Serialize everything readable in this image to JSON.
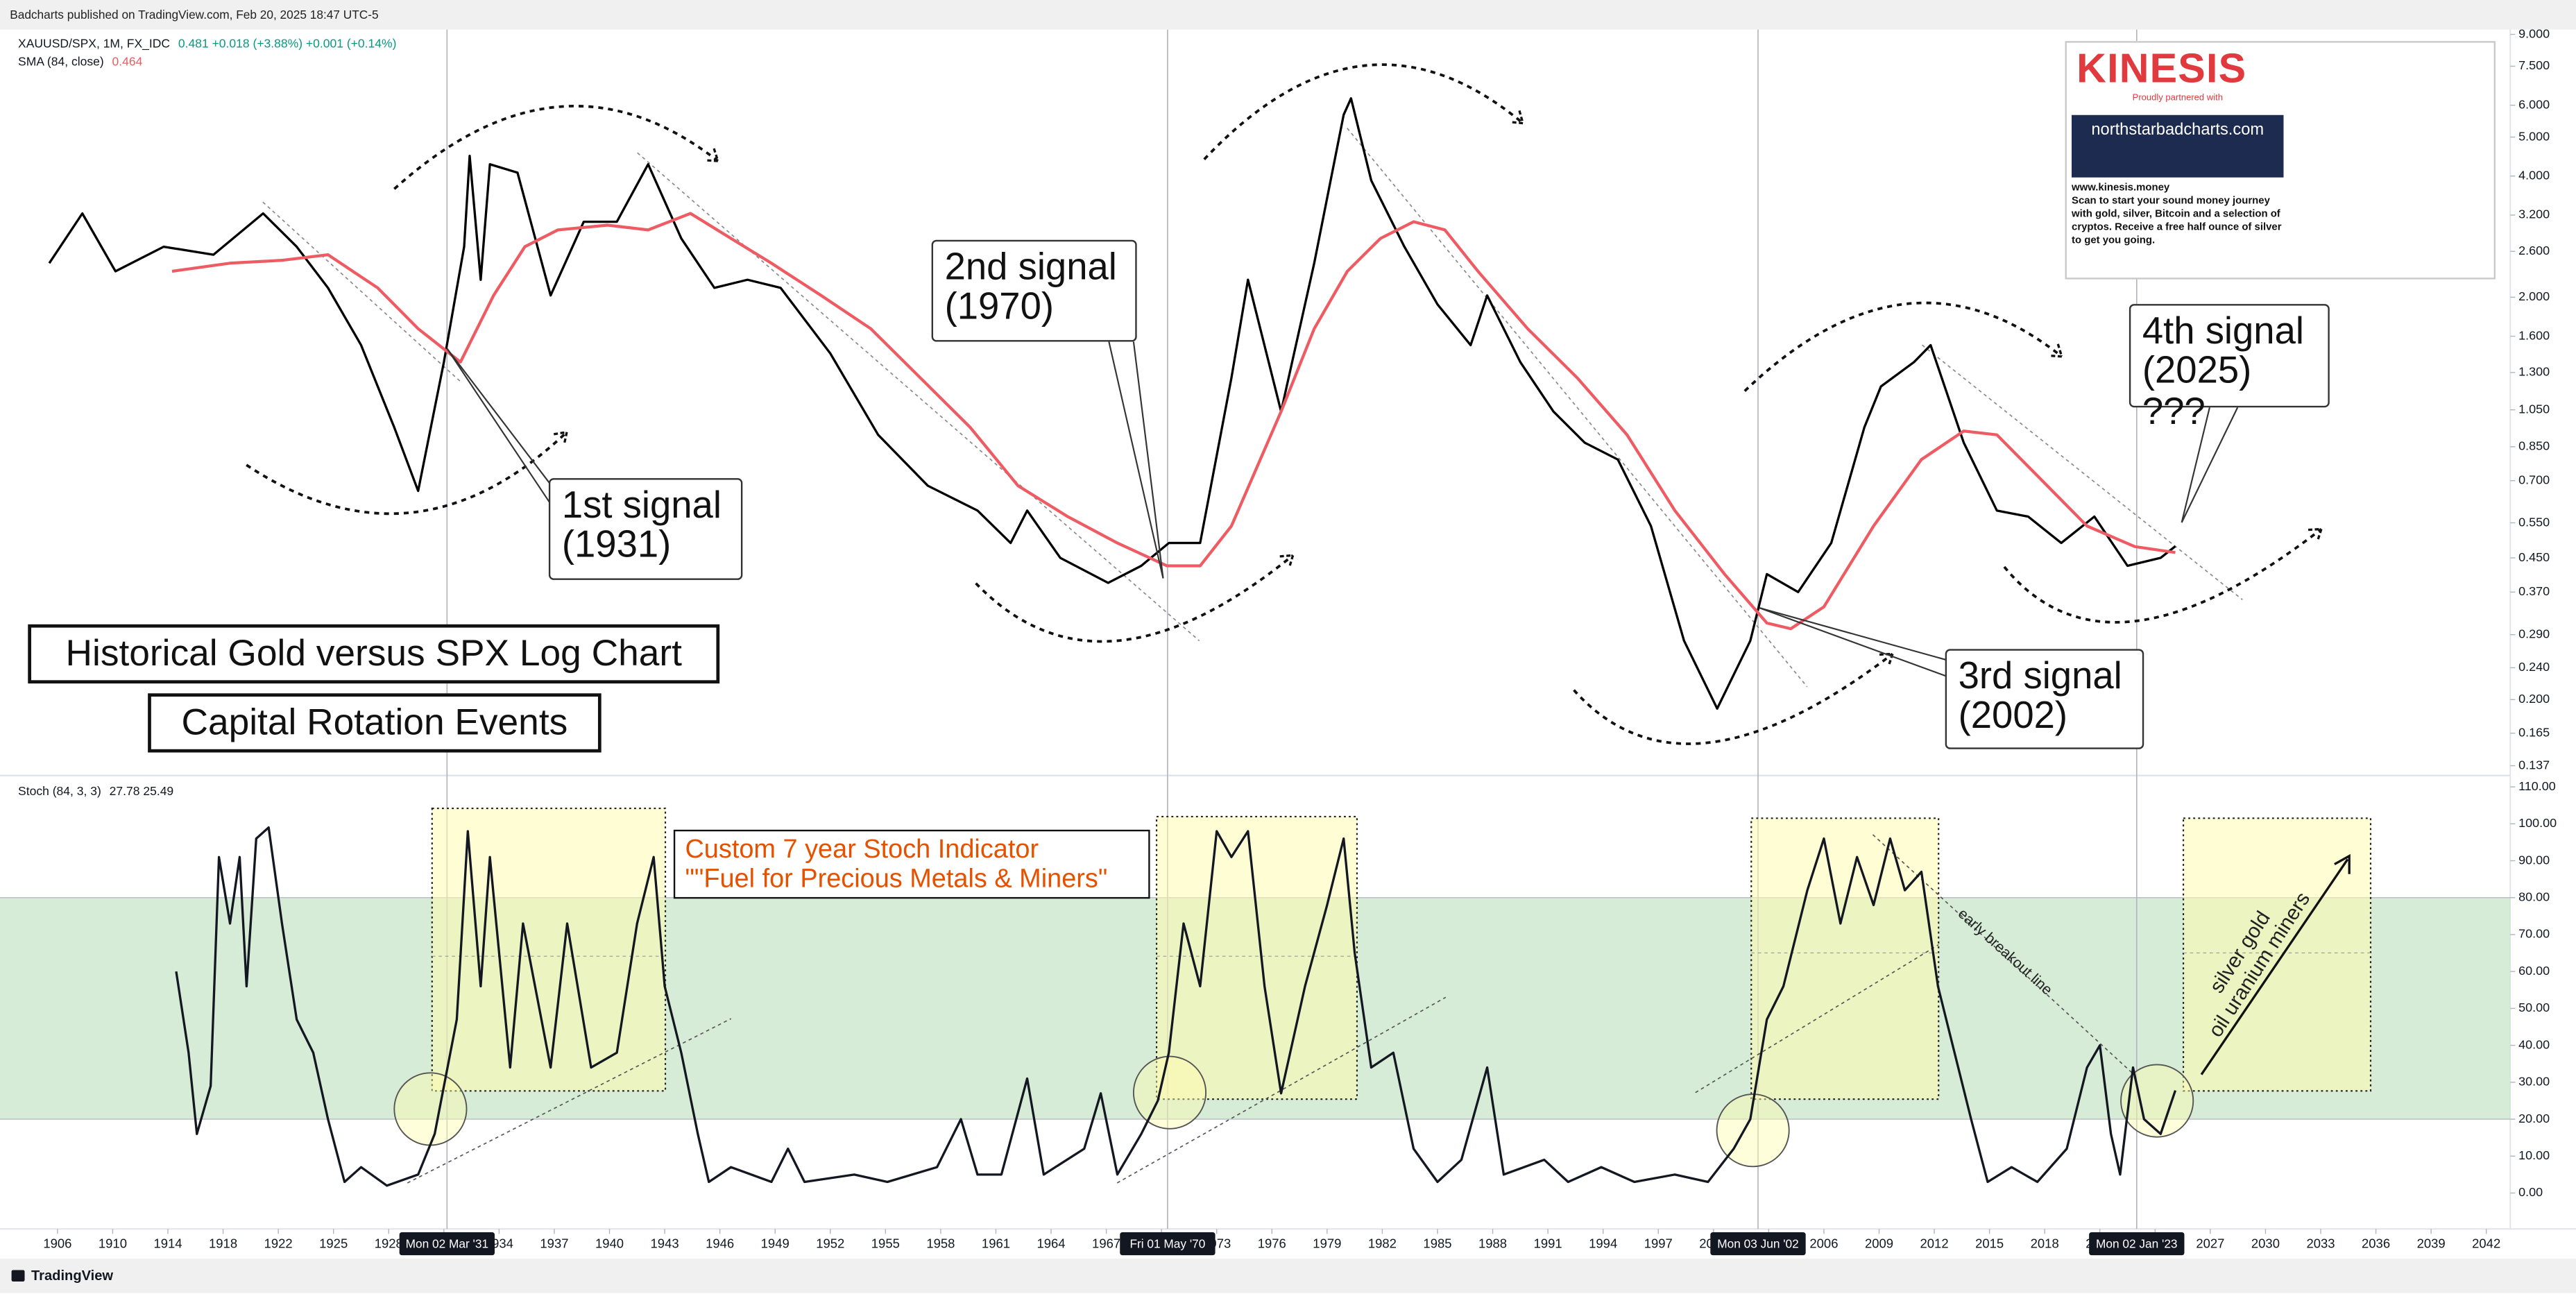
{
  "top_bar": "Badcharts published on TradingView.com, Feb 20, 2025 18:47 UTC-5",
  "footer": "TradingView",
  "ad": {
    "brand": "KINESIS",
    "tagline": "Proudly partnered with",
    "site": "northstarbadcharts.com",
    "url": "www.kinesis.money",
    "text": "Scan to start your sound money journey with gold, silver, Bitcoin and a selection of cryptos. Receive a free half ounce of silver to get you going."
  },
  "chart_data": [
    {
      "type": "line",
      "title": "Historical Gold versus SPX Log Chart",
      "subtitle": "Capital Rotation Events",
      "log_scale": true,
      "grid": false,
      "annotations": [
        "1st signal\n(1931)",
        "2nd signal\n(1970)",
        "3rd signal\n(2002)",
        "4th signal\n(2025) ???"
      ],
      "x_markers": [
        {
          "x": 1931.17,
          "label": "Mon 02 Mar '31"
        },
        {
          "x": 1970.33,
          "label": "Fri 01 May '70"
        },
        {
          "x": 2002.42,
          "label": "Mon 03 Jun '02"
        },
        {
          "x": 2023.0,
          "label": "Mon 02 Jan '23"
        }
      ],
      "ylim": [
        0.132,
        9.25
      ],
      "yticks": [
        {
          "value": 9,
          "label": "9.000"
        },
        {
          "value": 7.5,
          "label": "7.500"
        },
        {
          "value": 6,
          "label": "6.000"
        },
        {
          "value": 5,
          "label": "5.000"
        },
        {
          "value": 4,
          "label": "4.000"
        },
        {
          "value": 3.2,
          "label": "3.200"
        },
        {
          "value": 2.6,
          "label": "2.600"
        },
        {
          "value": 2,
          "label": "2.000"
        },
        {
          "value": 1.6,
          "label": "1.600"
        },
        {
          "value": 1.3,
          "label": "1.300"
        },
        {
          "value": 1.05,
          "label": "1.050"
        },
        {
          "value": 0.85,
          "label": "0.850"
        },
        {
          "value": 0.7,
          "label": "0.700"
        },
        {
          "value": 0.55,
          "label": "0.550"
        },
        {
          "value": 0.45,
          "label": "0.450"
        },
        {
          "value": 0.37,
          "label": "0.370"
        },
        {
          "value": 0.29,
          "label": "0.290"
        },
        {
          "value": 0.24,
          "label": "0.240"
        },
        {
          "value": 0.2,
          "label": "0.200"
        },
        {
          "value": 0.165,
          "label": "0.165"
        },
        {
          "value": 0.137,
          "label": "0.137"
        }
      ],
      "series": [
        {
          "name": "XAUUSD/SPX, 1M, FX_IDC",
          "last_label": "0.481  +0.018 (+3.88%)  +0.001 (+0.14%)",
          "color": "#000000",
          "x": [
            1905.4,
            1907.8,
            1910.2,
            1913.7,
            1917.3,
            1920.9,
            1923.0,
            1924.7,
            1926.5,
            1928.3,
            1929.6,
            1931.0,
            1932.1,
            1932.4,
            1933.0,
            1933.5,
            1935.0,
            1936.8,
            1938.6,
            1940.4,
            1942.1,
            1943.9,
            1945.7,
            1947.5,
            1949.3,
            1952.0,
            1954.6,
            1957.3,
            1960.0,
            1961.8,
            1962.7,
            1964.5,
            1967.1,
            1968.9,
            1970.4,
            1972.1,
            1973.8,
            1974.7,
            1976.5,
            1978.3,
            1979.9,
            1980.3,
            1981.4,
            1983.2,
            1985.0,
            1986.8,
            1987.7,
            1989.5,
            1991.3,
            1993.0,
            1994.8,
            1996.6,
            1998.4,
            2000.2,
            2002.0,
            2002.9,
            2004.6,
            2006.4,
            2008.2,
            2009.1,
            2010.9,
            2011.8,
            2013.6,
            2015.4,
            2017.1,
            2018.9,
            2020.7,
            2022.5,
            2024.3,
            2025.1
          ],
          "values": [
            2.43,
            3.23,
            2.32,
            2.67,
            2.55,
            3.23,
            2.67,
            2.11,
            1.52,
            0.95,
            0.66,
            1.38,
            2.67,
            4.49,
            2.21,
            4.28,
            4.08,
            2.02,
            3.08,
            3.08,
            4.28,
            2.8,
            2.11,
            2.21,
            2.11,
            1.45,
            0.91,
            0.68,
            0.59,
            0.49,
            0.59,
            0.45,
            0.39,
            0.43,
            0.49,
            0.49,
            1.26,
            2.21,
            1.04,
            2.43,
            5.68,
            6.24,
            3.9,
            2.67,
            1.92,
            1.52,
            2.02,
            1.38,
            1.04,
            0.87,
            0.79,
            0.54,
            0.28,
            0.19,
            0.28,
            0.41,
            0.37,
            0.49,
            0.95,
            1.2,
            1.38,
            1.52,
            0.87,
            0.59,
            0.57,
            0.49,
            0.57,
            0.43,
            0.45,
            0.481
          ]
        },
        {
          "name": "SMA (84, close)",
          "last_label": "0.464",
          "color": "#ef5b63",
          "x": [
            1914.3,
            1918.5,
            1922.2,
            1924.7,
            1927.4,
            1929.6,
            1931.9,
            1933.7,
            1935.4,
            1937.2,
            1939.9,
            1942.1,
            1944.4,
            1946.6,
            1948.8,
            1951.5,
            1954.2,
            1956.9,
            1959.6,
            1962.2,
            1964.9,
            1967.6,
            1970.3,
            1972.1,
            1973.8,
            1976.5,
            1978.3,
            1980.1,
            1981.9,
            1983.7,
            1985.4,
            1987.2,
            1989.9,
            1992.6,
            1995.3,
            1997.9,
            2000.6,
            2002.9,
            2004.2,
            2006.0,
            2008.7,
            2011.3,
            2013.6,
            2015.4,
            2017.6,
            2020.3,
            2022.9,
            2025.1
          ],
          "values": [
            2.32,
            2.43,
            2.47,
            2.55,
            2.11,
            1.67,
            1.38,
            2.02,
            2.67,
            2.94,
            3.02,
            2.94,
            3.23,
            2.8,
            2.43,
            2.02,
            1.67,
            1.26,
            0.95,
            0.68,
            0.57,
            0.49,
            0.43,
            0.43,
            0.54,
            1.04,
            1.67,
            2.32,
            2.8,
            3.08,
            2.94,
            2.32,
            1.67,
            1.26,
            0.91,
            0.59,
            0.41,
            0.31,
            0.3,
            0.34,
            0.54,
            0.79,
            0.93,
            0.91,
            0.72,
            0.54,
            0.48,
            0.464
          ]
        }
      ]
    },
    {
      "type": "line",
      "title": "Custom 7 year Stoch Indicator",
      "subtitle": "\"\"Fuel for Precious Metals & Miners\"",
      "annotations": [
        "early breakout line",
        "silver gold\noil uranium miners"
      ],
      "grid": false,
      "band": [
        20,
        80
      ],
      "band_color": "#c8e6c9",
      "xlim": [
        1901.8,
        2043.3
      ],
      "xticks": [
        1906,
        1910,
        1914,
        1918,
        1922,
        1925,
        1928,
        1931,
        1934,
        1937,
        1940,
        1943,
        1946,
        1949,
        1952,
        1955,
        1958,
        1961,
        1964,
        1967,
        1970,
        1973,
        1976,
        1979,
        1982,
        1985,
        1988,
        1991,
        1994,
        1997,
        2000,
        2003,
        2006,
        2009,
        2012,
        2015,
        2018,
        2021,
        2024,
        2027,
        2030,
        2033,
        2036,
        2039,
        2042
      ],
      "ylim": [
        -8.4,
        112.2
      ],
      "yticks": [
        {
          "value": 110,
          "label": "110.00"
        },
        {
          "value": 100,
          "label": "100.00"
        },
        {
          "value": 90,
          "label": "90.00"
        },
        {
          "value": 80,
          "label": "80.00"
        },
        {
          "value": 70,
          "label": "70.00"
        },
        {
          "value": 60,
          "label": "60.00"
        },
        {
          "value": 50,
          "label": "50.00"
        },
        {
          "value": 40,
          "label": "40.00"
        },
        {
          "value": 30,
          "label": "30.00"
        },
        {
          "value": 20,
          "label": "20.00"
        },
        {
          "value": 10,
          "label": "10.00"
        },
        {
          "value": 0,
          "label": "0.00"
        }
      ],
      "series": [
        {
          "name": "Stoch (84, 3, 3)",
          "last_label": "27.78  25.49",
          "color": "#131722",
          "x": [
            1914.6,
            1915.5,
            1916.1,
            1917.1,
            1917.7,
            1918.5,
            1919.2,
            1919.7,
            1920.4,
            1921.3,
            1922.2,
            1923.0,
            1923.9,
            1924.7,
            1925.6,
            1926.5,
            1927.9,
            1929.6,
            1930.5,
            1931.7,
            1932.3,
            1933.0,
            1933.5,
            1934.6,
            1935.3,
            1936.8,
            1937.7,
            1939.0,
            1940.4,
            1941.5,
            1942.4,
            1943.0,
            1943.9,
            1944.8,
            1945.4,
            1946.6,
            1948.8,
            1949.7,
            1950.6,
            1953.3,
            1955.1,
            1957.8,
            1959.1,
            1960.0,
            1961.3,
            1962.7,
            1963.6,
            1965.8,
            1966.7,
            1967.6,
            1968.9,
            1969.8,
            1970.4,
            1971.2,
            1972.1,
            1973.0,
            1973.8,
            1974.7,
            1975.6,
            1976.5,
            1977.8,
            1979.0,
            1979.9,
            1980.5,
            1981.4,
            1982.6,
            1983.7,
            1985.0,
            1986.3,
            1987.7,
            1988.6,
            1990.8,
            1992.1,
            1993.9,
            1995.7,
            1997.9,
            1999.7,
            2001.1,
            2002.0,
            2002.9,
            2003.8,
            2005.1,
            2006.0,
            2006.9,
            2007.8,
            2008.7,
            2009.6,
            2010.4,
            2011.3,
            2012.2,
            2013.1,
            2014.0,
            2014.9,
            2016.2,
            2017.6,
            2019.2,
            2020.3,
            2021.0,
            2021.6,
            2022.1,
            2022.8,
            2023.4,
            2024.3,
            2025.1
          ],
          "values": [
            60,
            38,
            16,
            29,
            91,
            73,
            91,
            56,
            96,
            99,
            73,
            47,
            38,
            20,
            3,
            7,
            2,
            5,
            16,
            47,
            98,
            56,
            91,
            34,
            73,
            34,
            73,
            34,
            38,
            73,
            91,
            56,
            38,
            16,
            3,
            7,
            3,
            12,
            3,
            5,
            3,
            7,
            20,
            5,
            5,
            31,
            5,
            12,
            27,
            5,
            16,
            25,
            38,
            73,
            56,
            98,
            91,
            98,
            56,
            27,
            56,
            78,
            96,
            65,
            34,
            38,
            12,
            3,
            9,
            34,
            5,
            9,
            3,
            7,
            3,
            5,
            3,
            12,
            20,
            47,
            56,
            82,
            96,
            73,
            91,
            78,
            96,
            82,
            87,
            56,
            38,
            20,
            3,
            7,
            3,
            12,
            34,
            40,
            16,
            5,
            34,
            20,
            16,
            27.78
          ]
        }
      ]
    }
  ]
}
